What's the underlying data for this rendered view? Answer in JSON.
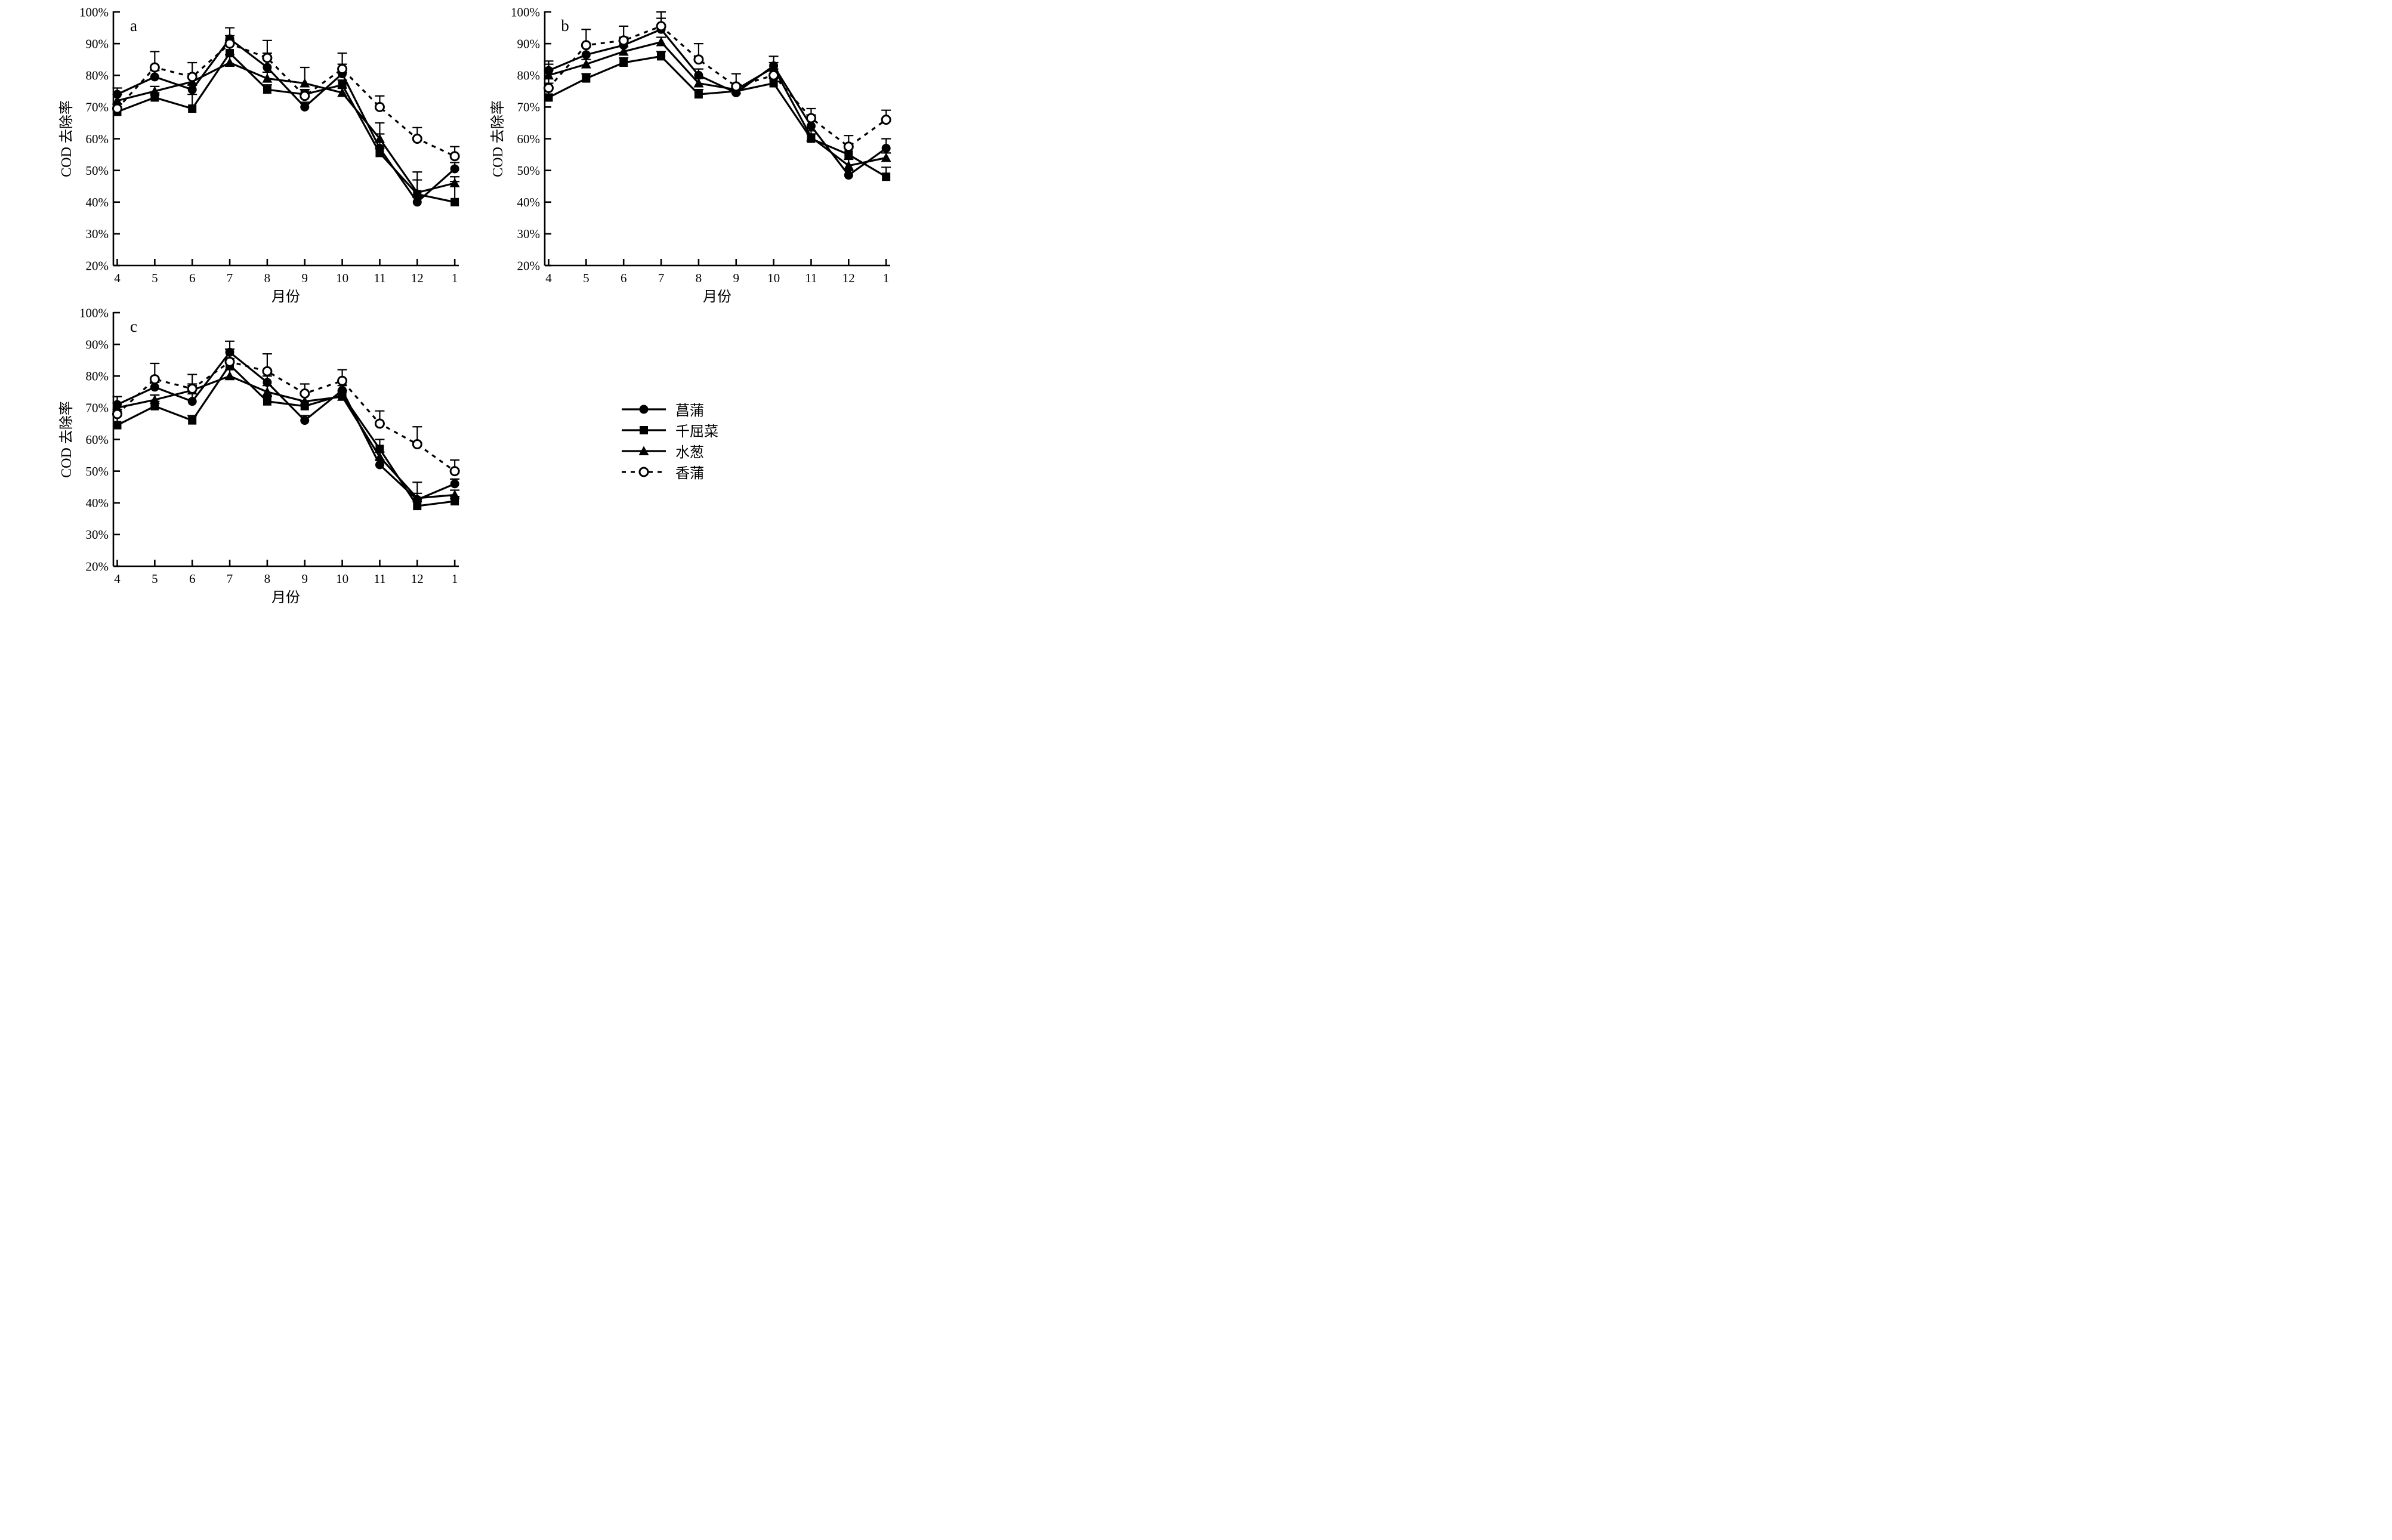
{
  "page": {
    "background": "#ffffff",
    "ink": "#000000"
  },
  "legend": {
    "position": "bottom-right",
    "items": [
      {
        "key": "acorus",
        "label": "菖蒲",
        "marker": "filled-circle",
        "line": "solid"
      },
      {
        "key": "lythrum",
        "label": "千屈菜",
        "marker": "filled-square",
        "line": "solid"
      },
      {
        "key": "scirpus",
        "label": "水葱",
        "marker": "filled-triangle",
        "line": "solid"
      },
      {
        "key": "typha",
        "label": "香蒲",
        "marker": "open-circle",
        "line": "dashed"
      }
    ]
  },
  "chart_data": [
    {
      "type": "line",
      "panel_label": "a",
      "xlabel": "月份",
      "ylabel": "COD 去除率",
      "ylim": [
        20,
        100
      ],
      "yticks": [
        "100%",
        "90%",
        "80%",
        "70%",
        "60%",
        "50%",
        "40%",
        "30%",
        "20%"
      ],
      "grid": false,
      "categories": [
        "4",
        "5",
        "6",
        "7",
        "8",
        "9",
        "10",
        "11",
        "12",
        "1"
      ],
      "series": [
        {
          "name": "菖蒲",
          "key": "acorus",
          "marker": "filled-circle",
          "line": "solid",
          "values": [
            74,
            79.5,
            75.5,
            91.5,
            82.5,
            70,
            80.5,
            57,
            40,
            50.5
          ],
          "err": [
            2,
            2,
            1.5,
            3.5,
            4.5,
            1.5,
            3,
            4.5,
            1.5,
            2
          ]
        },
        {
          "name": "千屈菜",
          "key": "lythrum",
          "marker": "filled-square",
          "line": "solid",
          "values": [
            68.5,
            73,
            69.5,
            87,
            75.5,
            74,
            77,
            55.5,
            42.5,
            40
          ],
          "err": [
            1.5,
            1.5,
            4.5,
            4,
            1.5,
            1.5,
            1.5,
            1.5,
            4.5,
            6.5
          ]
        },
        {
          "name": "水葱",
          "key": "scirpus",
          "marker": "filled-triangle",
          "line": "solid",
          "values": [
            72,
            75,
            78,
            84,
            79,
            77.5,
            74.5,
            60,
            43,
            46
          ],
          "err": [
            2,
            1.5,
            2.5,
            2.5,
            2,
            5,
            1.5,
            5,
            6.5,
            2
          ]
        },
        {
          "name": "香蒲",
          "key": "typha",
          "marker": "open-circle",
          "line": "dashed",
          "values": [
            69.5,
            82.5,
            79.5,
            90,
            85.5,
            73.5,
            82,
            70,
            60,
            54.5
          ],
          "err": [
            1.5,
            5,
            4.5,
            2.5,
            5.5,
            2,
            5,
            3.5,
            3.5,
            3
          ]
        }
      ]
    },
    {
      "type": "line",
      "panel_label": "b",
      "xlabel": "月份",
      "ylabel": "COD 去除率",
      "ylim": [
        20,
        100
      ],
      "yticks": [
        "100%",
        "90%",
        "80%",
        "70%",
        "60%",
        "50%",
        "40%",
        "30%",
        "20%"
      ],
      "grid": false,
      "categories": [
        "4",
        "5",
        "6",
        "7",
        "8",
        "9",
        "10",
        "11",
        "12",
        "1"
      ],
      "series": [
        {
          "name": "菖蒲",
          "key": "acorus",
          "marker": "filled-circle",
          "line": "solid",
          "values": [
            81.5,
            86.5,
            89.5,
            94.5,
            80,
            74.5,
            83,
            64,
            48.5,
            57
          ],
          "err": [
            2,
            2.5,
            2.5,
            3.5,
            2,
            1.5,
            3,
            3.5,
            1.5,
            3
          ]
        },
        {
          "name": "千屈菜",
          "key": "lythrum",
          "marker": "filled-square",
          "line": "solid",
          "values": [
            73,
            79,
            84,
            86,
            74,
            75,
            77.5,
            60,
            55,
            48
          ],
          "err": [
            11.5,
            1.5,
            1.5,
            1.5,
            1.5,
            1.5,
            1.5,
            1.5,
            2,
            3
          ]
        },
        {
          "name": "水葱",
          "key": "scirpus",
          "marker": "filled-triangle",
          "line": "solid",
          "values": [
            80,
            83.5,
            87.5,
            90.5,
            77.5,
            75.5,
            82.5,
            60.5,
            51.5,
            54
          ],
          "err": [
            1.5,
            1.5,
            1.5,
            1.5,
            1.5,
            1.5,
            1.5,
            2,
            2,
            1.5
          ]
        },
        {
          "name": "香蒲",
          "key": "typha",
          "marker": "open-circle",
          "line": "dashed",
          "values": [
            76,
            89.5,
            91,
            95.5,
            85,
            76.5,
            80,
            66.5,
            57.5,
            66
          ],
          "err": [
            1.5,
            5,
            4.5,
            4.5,
            5,
            4,
            2,
            3,
            3.5,
            3
          ]
        }
      ]
    },
    {
      "type": "line",
      "panel_label": "c",
      "xlabel": "月份",
      "ylabel": "COD 去除率",
      "ylim": [
        20,
        100
      ],
      "yticks": [
        "100%",
        "90%",
        "80%",
        "70%",
        "60%",
        "50%",
        "40%",
        "30%",
        "20%"
      ],
      "grid": false,
      "categories": [
        "4",
        "5",
        "6",
        "7",
        "8",
        "9",
        "10",
        "11",
        "12",
        "1"
      ],
      "series": [
        {
          "name": "菖蒲",
          "key": "acorus",
          "marker": "filled-circle",
          "line": "solid",
          "values": [
            71,
            76.5,
            72,
            87.5,
            78,
            66,
            75.5,
            52,
            41,
            46
          ],
          "err": [
            2.5,
            1.5,
            5.5,
            3.5,
            2,
            1.5,
            1.5,
            1.5,
            2,
            1.5
          ]
        },
        {
          "name": "千屈菜",
          "key": "lythrum",
          "marker": "filled-square",
          "line": "solid",
          "values": [
            64.5,
            70.5,
            66,
            83.5,
            72,
            70.5,
            74,
            57,
            39,
            40.5
          ],
          "err": [
            9,
            1.5,
            1.5,
            2,
            1.5,
            1.5,
            1.5,
            3,
            2,
            1.5
          ]
        },
        {
          "name": "水葱",
          "key": "scirpus",
          "marker": "filled-triangle",
          "line": "solid",
          "values": [
            70,
            72.5,
            75.5,
            80,
            75,
            72,
            73.5,
            54.5,
            41.5,
            42.5
          ],
          "err": [
            1.5,
            1.5,
            1.5,
            2,
            2,
            2,
            1.5,
            1.5,
            5,
            1.5
          ]
        },
        {
          "name": "香蒲",
          "key": "typha",
          "marker": "open-circle",
          "line": "dashed",
          "values": [
            68,
            79,
            76,
            84.5,
            81.5,
            74.5,
            78.5,
            65,
            58.5,
            50
          ],
          "err": [
            1.5,
            5,
            4.5,
            4,
            5.5,
            3,
            3.5,
            4,
            5.5,
            3.5
          ]
        }
      ]
    }
  ]
}
